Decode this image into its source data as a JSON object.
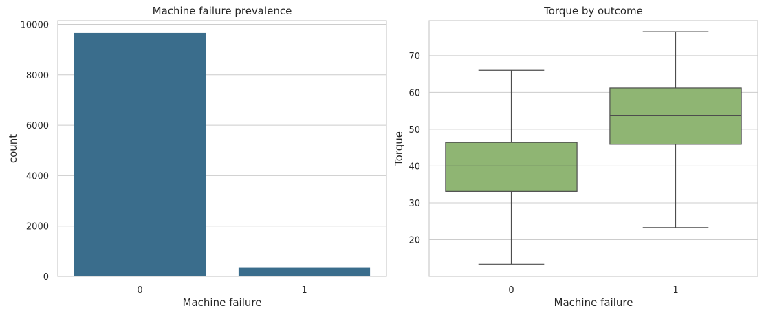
{
  "chart_data": [
    {
      "type": "bar",
      "title": "Machine failure prevalence",
      "xlabel": "Machine failure",
      "ylabel": "count",
      "categories": [
        "0",
        "1"
      ],
      "values": [
        9661,
        339
      ],
      "ylim": [
        0,
        10150
      ],
      "yticks": [
        0,
        2000,
        4000,
        6000,
        8000,
        10000
      ],
      "grid": true,
      "color": "#3a6d8c"
    },
    {
      "type": "box",
      "title": "Torque by outcome",
      "xlabel": "Machine failure",
      "ylabel": "Torque",
      "categories": [
        "0",
        "1"
      ],
      "boxes": [
        {
          "category": "0",
          "whisker_low": 13.3,
          "q1": 33.1,
          "median": 40.0,
          "q3": 46.4,
          "whisker_high": 66.0
        },
        {
          "category": "1",
          "whisker_low": 23.3,
          "q1": 45.9,
          "median": 53.8,
          "q3": 61.2,
          "whisker_high": 76.5
        }
      ],
      "ylim": [
        10,
        79.5
      ],
      "yticks": [
        20,
        30,
        40,
        50,
        60,
        70
      ],
      "grid": true,
      "color": "#8fb573"
    }
  ]
}
